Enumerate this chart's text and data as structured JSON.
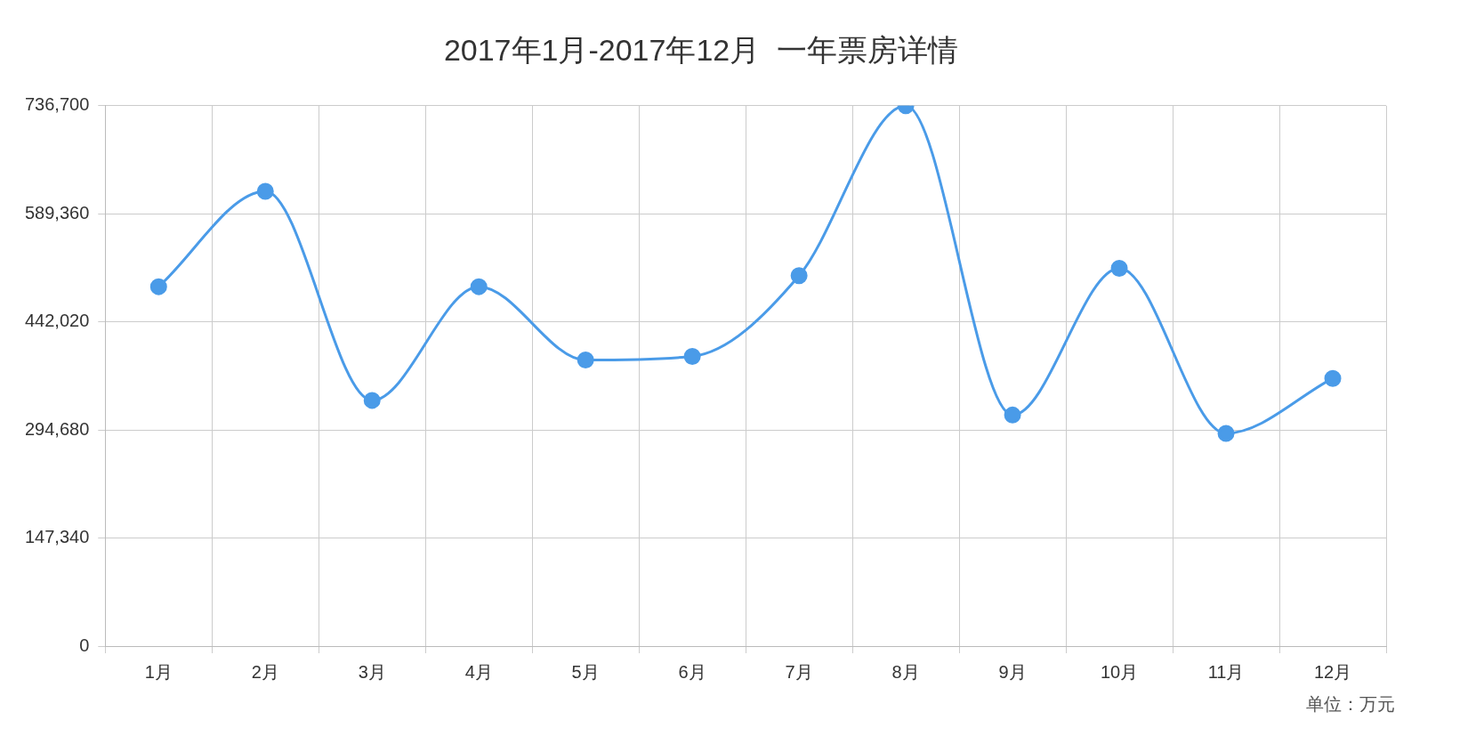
{
  "chart_data": {
    "type": "line",
    "title": "2017年1月-2017年12月  一年票房详情",
    "categories": [
      "1月",
      "2月",
      "3月",
      "4月",
      "5月",
      "6月",
      "7月",
      "8月",
      "9月",
      "10月",
      "11月",
      "12月"
    ],
    "series": [
      {
        "color": "#4a9be8",
        "values": [
          490000,
          620000,
          335000,
          490000,
          390000,
          395000,
          505000,
          736700,
          315000,
          515000,
          290000,
          365000
        ]
      }
    ],
    "ylim": [
      0,
      736700
    ],
    "yticks": [
      {
        "value": 0,
        "label": "0"
      },
      {
        "value": 147340,
        "label": "147,340"
      },
      {
        "value": 294680,
        "label": "294,680"
      },
      {
        "value": 442020,
        "label": "442,020"
      },
      {
        "value": 589360,
        "label": "589,360"
      },
      {
        "value": 736700,
        "label": "736,700"
      }
    ],
    "grid": true,
    "marker": "circle",
    "line_style": "solid",
    "legend": false,
    "annotations": [
      "单位：万元"
    ]
  }
}
